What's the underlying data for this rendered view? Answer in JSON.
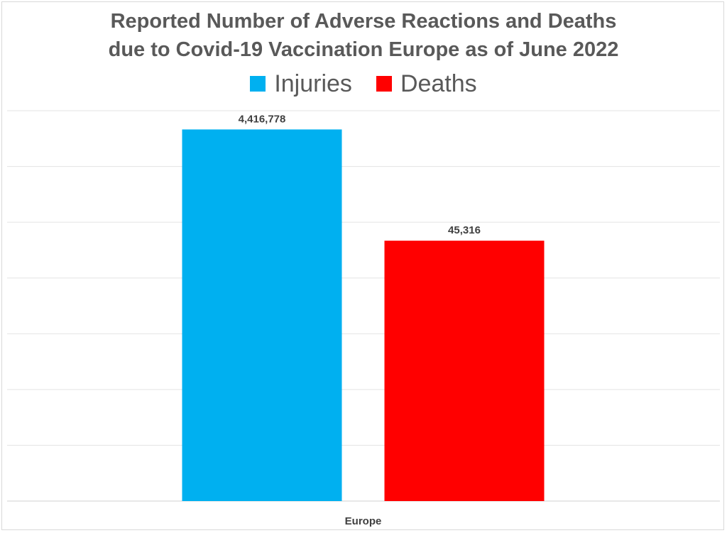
{
  "chart_data": {
    "type": "bar",
    "title_lines": [
      "Reported Number of Adverse Reactions and Deaths",
      "due to Covid-19 Vaccination Europe as of  June 2022"
    ],
    "categories": [
      "Europe"
    ],
    "series": [
      {
        "name": "Injuries",
        "values": [
          4416778
        ],
        "label": "4,416,778",
        "color": "#00b0f0"
      },
      {
        "name": "Deaths",
        "values": [
          45316
        ],
        "label": "45,316",
        "color": "#ff0000"
      }
    ],
    "display_height_fraction": [
      0.952,
      0.667
    ],
    "grid": true,
    "y_axis_shown": false,
    "legend_position": "top"
  }
}
